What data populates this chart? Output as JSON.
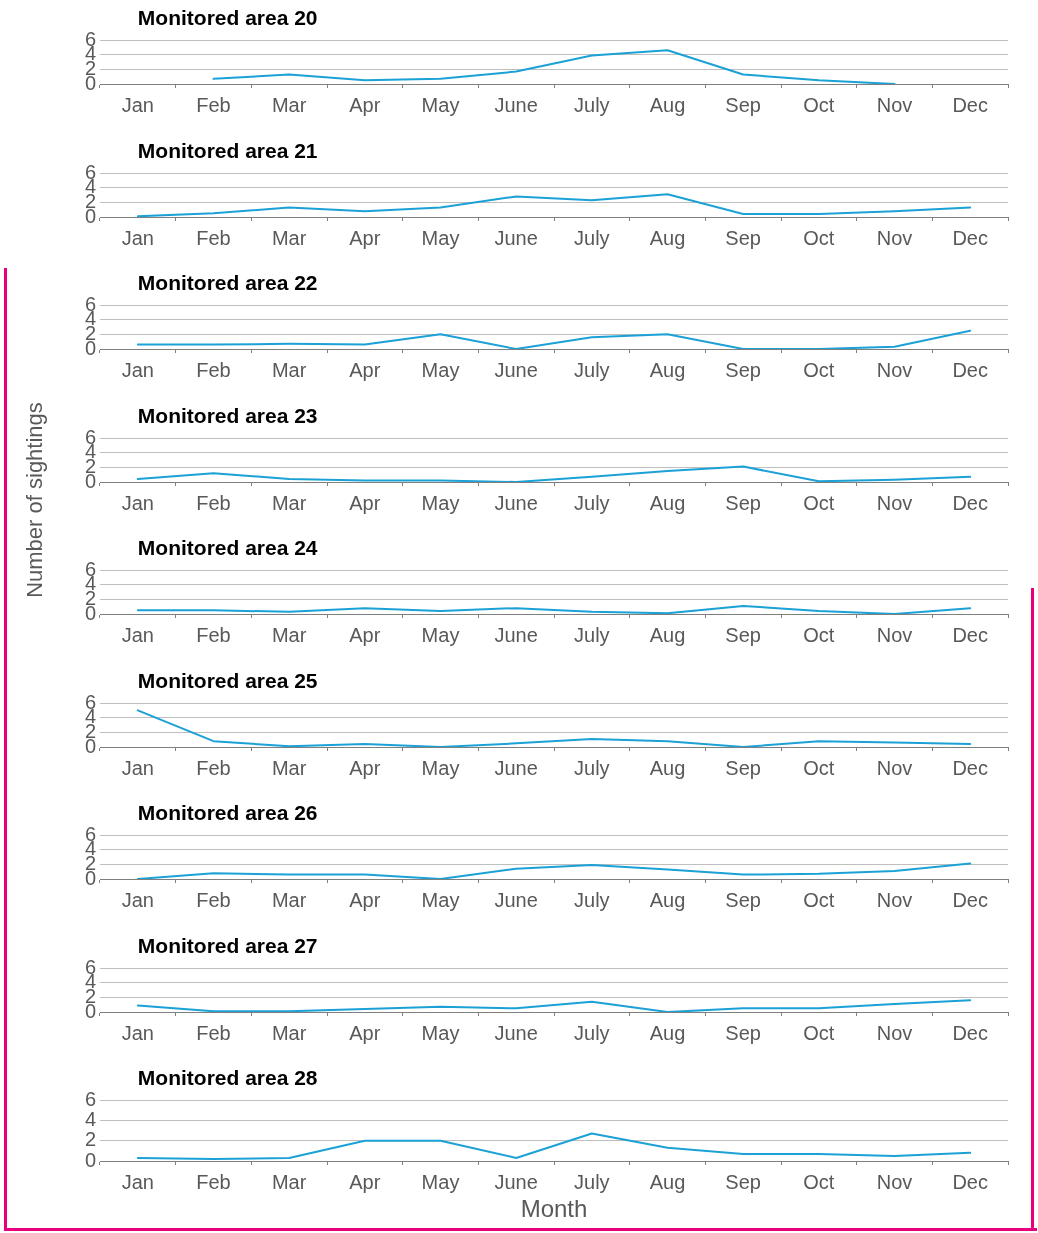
{
  "chart_data": [
    {
      "type": "line",
      "title": "Monitored area 20",
      "marker": "none",
      "grid": "y",
      "categories": [
        "Jan",
        "Feb",
        "Mar",
        "Apr",
        "May",
        "June",
        "July",
        "Aug",
        "Sep",
        "Oct",
        "Nov",
        "Dec"
      ],
      "ylim": [
        0,
        6
      ],
      "yticks": [
        0,
        2,
        4,
        6
      ],
      "series": [
        {
          "color": "#1ba1d6",
          "values": [
            null,
            0.7,
            1.3,
            0.5,
            0.7,
            1.7,
            3.9,
            4.6,
            1.3,
            0.5,
            0,
            null
          ]
        }
      ]
    },
    {
      "type": "line",
      "title": "Monitored area 21",
      "marker": "none",
      "grid": "y",
      "categories": [
        "Jan",
        "Feb",
        "Mar",
        "Apr",
        "May",
        "June",
        "July",
        "Aug",
        "Sep",
        "Oct",
        "Nov",
        "Dec"
      ],
      "ylim": [
        0,
        6
      ],
      "yticks": [
        0,
        2,
        4,
        6
      ],
      "series": [
        {
          "color": "#1ba1d6",
          "values": [
            0.1,
            0.5,
            1.3,
            0.8,
            1.3,
            2.8,
            2.3,
            3.1,
            0.4,
            0.4,
            0.8,
            1.3
          ]
        }
      ]
    },
    {
      "type": "line",
      "title": "Monitored area 22",
      "marker": "none",
      "grid": "y",
      "categories": [
        "Jan",
        "Feb",
        "Mar",
        "Apr",
        "May",
        "June",
        "July",
        "Aug",
        "Sep",
        "Oct",
        "Nov",
        "Dec"
      ],
      "ylim": [
        0,
        6
      ],
      "yticks": [
        0,
        2,
        4,
        6
      ],
      "series": [
        {
          "color": "#1ba1d6",
          "values": [
            0.6,
            0.6,
            0.7,
            0.6,
            2.0,
            0,
            1.6,
            2.0,
            0,
            0,
            0.3,
            2.5
          ]
        }
      ]
    },
    {
      "type": "line",
      "title": "Monitored area 23",
      "marker": "none",
      "grid": "y",
      "categories": [
        "Jan",
        "Feb",
        "Mar",
        "Apr",
        "May",
        "June",
        "July",
        "Aug",
        "Sep",
        "Oct",
        "Nov",
        "Dec"
      ],
      "ylim": [
        0,
        6
      ],
      "yticks": [
        0,
        2,
        4,
        6
      ],
      "series": [
        {
          "color": "#1ba1d6",
          "values": [
            0.4,
            1.2,
            0.4,
            0.2,
            0.2,
            0,
            0.7,
            1.5,
            2.1,
            0.1,
            0.3,
            0.7
          ]
        }
      ]
    },
    {
      "type": "line",
      "title": "Monitored area 24",
      "ylabel": "Number of sightings",
      "marker": "none",
      "grid": "y",
      "categories": [
        "Jan",
        "Feb",
        "Mar",
        "Apr",
        "May",
        "June",
        "July",
        "Aug",
        "Sep",
        "Oct",
        "Nov",
        "Dec"
      ],
      "ylim": [
        0,
        6
      ],
      "yticks": [
        0,
        2,
        4,
        6
      ],
      "series": [
        {
          "color": "#1ba1d6",
          "values": [
            0.5,
            0.5,
            0.3,
            0.8,
            0.4,
            0.8,
            0.3,
            0.1,
            1.1,
            0.4,
            0,
            0.8
          ]
        }
      ]
    },
    {
      "type": "line",
      "title": "Monitored area 25",
      "marker": "none",
      "grid": "y",
      "categories": [
        "Jan",
        "Feb",
        "Mar",
        "Apr",
        "May",
        "June",
        "July",
        "Aug",
        "Sep",
        "Oct",
        "Nov",
        "Dec"
      ],
      "ylim": [
        0,
        6
      ],
      "yticks": [
        0,
        2,
        4,
        6
      ],
      "series": [
        {
          "color": "#1ba1d6",
          "values": [
            5.0,
            0.8,
            0.1,
            0.4,
            0,
            0.5,
            1.1,
            0.8,
            0,
            0.8,
            0.6,
            0.4
          ]
        }
      ]
    },
    {
      "type": "line",
      "title": "Monitored area 26",
      "marker": "none",
      "grid": "y",
      "categories": [
        "Jan",
        "Feb",
        "Mar",
        "Apr",
        "May",
        "June",
        "July",
        "Aug",
        "Sep",
        "Oct",
        "Nov",
        "Dec"
      ],
      "ylim": [
        0,
        6
      ],
      "yticks": [
        0,
        2,
        4,
        6
      ],
      "series": [
        {
          "color": "#1ba1d6",
          "values": [
            0,
            0.8,
            0.6,
            0.6,
            0,
            1.4,
            1.9,
            1.3,
            0.6,
            0.7,
            1.1,
            2.1
          ]
        }
      ]
    },
    {
      "type": "line",
      "title": "Monitored area 27",
      "marker": "none",
      "grid": "y",
      "categories": [
        "Jan",
        "Feb",
        "Mar",
        "Apr",
        "May",
        "June",
        "July",
        "Aug",
        "Sep",
        "Oct",
        "Nov",
        "Dec"
      ],
      "ylim": [
        0,
        6
      ],
      "yticks": [
        0,
        2,
        4,
        6
      ],
      "series": [
        {
          "color": "#1ba1d6",
          "values": [
            0.9,
            0.1,
            0.1,
            0.4,
            0.7,
            0.5,
            1.4,
            0,
            0.5,
            0.5,
            1.1,
            1.6
          ]
        }
      ]
    },
    {
      "type": "line",
      "title": "Monitored area 28",
      "xlabel": "Month",
      "marker": "none",
      "grid": "y",
      "categories": [
        "Jan",
        "Feb",
        "Mar",
        "Apr",
        "May",
        "June",
        "July",
        "Aug",
        "Sep",
        "Oct",
        "Nov",
        "Dec"
      ],
      "ylim": [
        0,
        6
      ],
      "yticks": [
        0,
        2,
        4,
        6
      ],
      "series": [
        {
          "color": "#1ba1d6",
          "values": [
            0.3,
            0.2,
            0.3,
            2.0,
            2.0,
            0.3,
            2.7,
            1.3,
            0.7,
            0.7,
            0.5,
            0.8
          ]
        }
      ]
    }
  ]
}
